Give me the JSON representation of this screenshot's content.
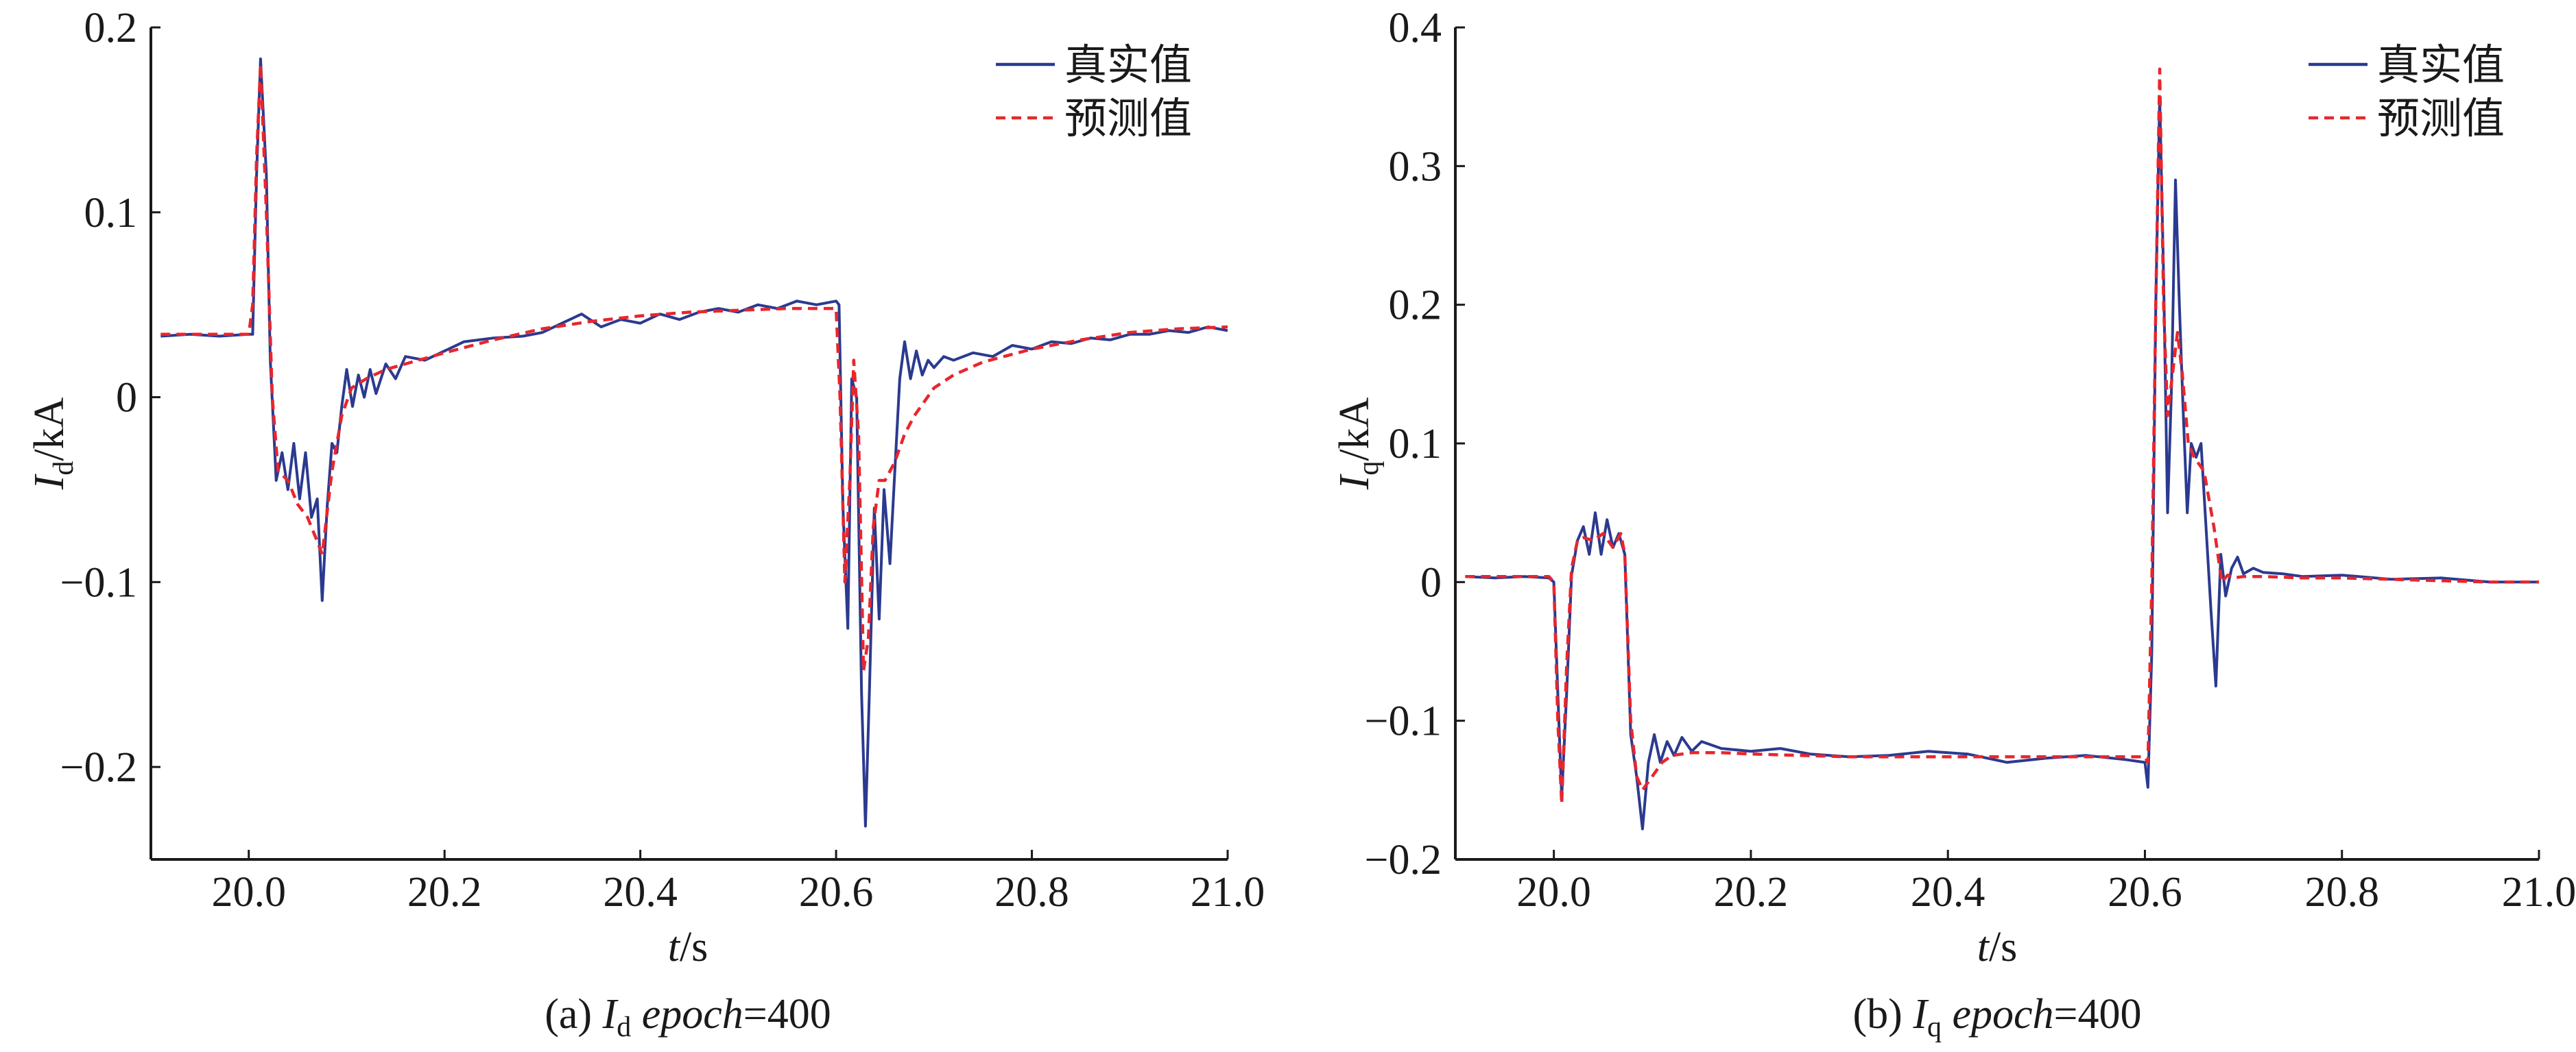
{
  "colors": {
    "actual": "#2b3a8f",
    "predicted": "#e8262d",
    "axis": "#1a1a1a"
  },
  "chart_data": [
    {
      "type": "line",
      "ylabel_main": "I",
      "ylabel_sub": "d",
      "ylabel_unit": "/kA",
      "xlabel_main": "t",
      "xlabel_unit": "/s",
      "caption_prefix": "(a) ",
      "caption_var": "I",
      "caption_sub": "d",
      "caption_epoch": "epoch",
      "caption_value": "=400",
      "xlim": [
        19.9,
        21.0
      ],
      "ylim": [
        -0.25,
        0.2
      ],
      "xticks": [
        20.0,
        20.2,
        20.4,
        20.6,
        20.8,
        21.0
      ],
      "xtick_labels": [
        "20.0",
        "20.2",
        "20.4",
        "20.6",
        "20.8",
        "21.0"
      ],
      "yticks": [
        -0.2,
        -0.1,
        0,
        0.1,
        0.2
      ],
      "ytick_labels": [
        "−0.2",
        "−0.1",
        "0",
        "0.1",
        "0.2"
      ],
      "legend_position": "top-right",
      "grid": false,
      "series": [
        {
          "name": "真实值",
          "style": "solid",
          "x": [
            19.91,
            19.94,
            19.97,
            20.0,
            20.004,
            20.008,
            20.012,
            20.018,
            20.022,
            20.028,
            20.034,
            20.04,
            20.046,
            20.052,
            20.058,
            20.064,
            20.07,
            20.075,
            20.08,
            20.085,
            20.09,
            20.095,
            20.1,
            20.106,
            20.112,
            20.118,
            20.124,
            20.13,
            20.14,
            20.15,
            20.16,
            20.18,
            20.2,
            20.22,
            20.25,
            20.28,
            20.3,
            20.32,
            20.34,
            20.36,
            20.38,
            20.4,
            20.42,
            20.44,
            20.46,
            20.48,
            20.5,
            20.52,
            20.54,
            20.56,
            20.58,
            20.6,
            20.603,
            20.607,
            20.612,
            20.616,
            20.621,
            20.626,
            20.63,
            20.634,
            20.639,
            20.644,
            20.649,
            20.655,
            20.66,
            20.665,
            20.67,
            20.676,
            20.682,
            20.688,
            20.694,
            20.7,
            20.71,
            20.72,
            20.74,
            20.76,
            20.78,
            20.8,
            20.82,
            20.84,
            20.86,
            20.88,
            20.9,
            20.92,
            20.94,
            20.96,
            20.98,
            21.0
          ],
          "y": [
            0.033,
            0.034,
            0.033,
            0.034,
            0.034,
            0.12,
            0.183,
            0.12,
            0.02,
            -0.045,
            -0.03,
            -0.05,
            -0.025,
            -0.055,
            -0.03,
            -0.065,
            -0.055,
            -0.11,
            -0.06,
            -0.025,
            -0.03,
            -0.005,
            0.015,
            -0.005,
            0.012,
            0.0,
            0.015,
            0.002,
            0.018,
            0.01,
            0.022,
            0.02,
            0.025,
            0.03,
            0.032,
            0.033,
            0.035,
            0.04,
            0.045,
            0.038,
            0.042,
            0.04,
            0.045,
            0.042,
            0.046,
            0.048,
            0.046,
            0.05,
            0.048,
            0.052,
            0.05,
            0.052,
            0.05,
            -0.06,
            -0.125,
            0.01,
            0.0,
            -0.16,
            -0.232,
            -0.16,
            -0.06,
            -0.12,
            -0.05,
            -0.09,
            -0.04,
            0.01,
            0.03,
            0.01,
            0.025,
            0.012,
            0.02,
            0.016,
            0.022,
            0.02,
            0.024,
            0.022,
            0.028,
            0.026,
            0.03,
            0.029,
            0.032,
            0.031,
            0.034,
            0.034,
            0.036,
            0.035,
            0.038,
            0.036
          ]
        },
        {
          "name": "预测值",
          "style": "dashed",
          "x": [
            19.91,
            19.94,
            19.97,
            20.0,
            20.004,
            20.008,
            20.012,
            20.018,
            20.024,
            20.03,
            20.04,
            20.05,
            20.06,
            20.07,
            20.075,
            20.085,
            20.095,
            20.105,
            20.12,
            20.14,
            20.16,
            20.2,
            20.25,
            20.3,
            20.35,
            20.4,
            20.45,
            20.5,
            20.55,
            20.6,
            20.604,
            20.609,
            20.614,
            20.618,
            20.623,
            20.628,
            20.633,
            20.638,
            20.644,
            20.65,
            20.66,
            20.67,
            20.68,
            20.7,
            20.72,
            20.75,
            20.8,
            20.85,
            20.9,
            20.95,
            21.0
          ],
          "y": [
            0.034,
            0.034,
            0.034,
            0.034,
            0.05,
            0.13,
            0.18,
            0.1,
            0.0,
            -0.04,
            -0.045,
            -0.058,
            -0.065,
            -0.078,
            -0.085,
            -0.04,
            -0.01,
            0.005,
            0.01,
            0.015,
            0.018,
            0.024,
            0.031,
            0.037,
            0.041,
            0.044,
            0.046,
            0.047,
            0.048,
            0.048,
            0.0,
            -0.1,
            -0.045,
            0.02,
            -0.02,
            -0.148,
            -0.13,
            -0.07,
            -0.045,
            -0.045,
            -0.035,
            -0.02,
            -0.01,
            0.005,
            0.012,
            0.019,
            0.026,
            0.031,
            0.035,
            0.037,
            0.038
          ]
        }
      ]
    },
    {
      "type": "line",
      "ylabel_main": "I",
      "ylabel_sub": "q",
      "ylabel_unit": "/kA",
      "xlabel_main": "t",
      "xlabel_unit": "/s",
      "caption_prefix": "(b) ",
      "caption_var": "I",
      "caption_sub": "q",
      "caption_epoch": "epoch",
      "caption_value": "=400",
      "xlim": [
        19.9,
        21.0
      ],
      "ylim": [
        -0.2,
        0.4
      ],
      "xticks": [
        20.0,
        20.2,
        20.4,
        20.6,
        20.8,
        21.0
      ],
      "xtick_labels": [
        "20.0",
        "20.2",
        "20.4",
        "20.6",
        "20.8",
        "21.0"
      ],
      "yticks": [
        -0.2,
        -0.1,
        0,
        0.1,
        0.2,
        0.3,
        0.4
      ],
      "ytick_labels": [
        "−0.2",
        "−0.1",
        "0",
        "0.1",
        "0.2",
        "0.3",
        "0.4"
      ],
      "legend_position": "top-right",
      "grid": false,
      "series": [
        {
          "name": "真实值",
          "style": "solid",
          "x": [
            19.91,
            19.94,
            19.97,
            19.995,
            20.0,
            20.004,
            20.008,
            20.013,
            20.018,
            20.024,
            20.03,
            20.036,
            20.042,
            20.048,
            20.054,
            20.06,
            20.066,
            20.072,
            20.078,
            20.084,
            20.09,
            20.096,
            20.102,
            20.108,
            20.115,
            20.122,
            20.13,
            20.14,
            20.15,
            20.17,
            20.2,
            20.23,
            20.26,
            20.3,
            20.34,
            20.38,
            20.42,
            20.46,
            20.5,
            20.54,
            20.58,
            20.6,
            20.603,
            20.607,
            20.611,
            20.615,
            20.619,
            20.623,
            20.627,
            20.631,
            20.635,
            20.639,
            20.643,
            20.647,
            20.652,
            20.657,
            20.662,
            20.667,
            20.672,
            20.677,
            20.682,
            20.688,
            20.694,
            20.7,
            20.71,
            20.72,
            20.74,
            20.76,
            20.8,
            20.85,
            20.9,
            20.95,
            21.0
          ],
          "y": [
            0.004,
            0.003,
            0.004,
            0.003,
            0.0,
            -0.08,
            -0.155,
            -0.08,
            0.005,
            0.03,
            0.04,
            0.02,
            0.05,
            0.02,
            0.045,
            0.025,
            0.035,
            0.02,
            -0.11,
            -0.14,
            -0.178,
            -0.13,
            -0.11,
            -0.13,
            -0.115,
            -0.125,
            -0.112,
            -0.122,
            -0.115,
            -0.12,
            -0.122,
            -0.12,
            -0.124,
            -0.126,
            -0.125,
            -0.122,
            -0.124,
            -0.13,
            -0.127,
            -0.125,
            -0.128,
            -0.13,
            -0.148,
            -0.05,
            0.2,
            0.35,
            0.22,
            0.05,
            0.14,
            0.29,
            0.2,
            0.12,
            0.05,
            0.1,
            0.09,
            0.1,
            0.04,
            -0.02,
            -0.075,
            0.02,
            -0.01,
            0.01,
            0.018,
            0.006,
            0.01,
            0.007,
            0.006,
            0.004,
            0.005,
            0.002,
            0.003,
            0.0,
            0.0
          ]
        },
        {
          "name": "预测值",
          "style": "dashed",
          "x": [
            19.91,
            19.94,
            19.97,
            19.995,
            20.0,
            20.004,
            20.008,
            20.013,
            20.018,
            20.024,
            20.03,
            20.04,
            20.05,
            20.06,
            20.068,
            20.072,
            20.078,
            20.084,
            20.09,
            20.1,
            20.11,
            20.12,
            20.14,
            20.17,
            20.2,
            20.3,
            20.4,
            20.5,
            20.6,
            20.603,
            20.607,
            20.611,
            20.615,
            20.619,
            20.623,
            20.628,
            20.633,
            20.638,
            20.644,
            20.65,
            20.66,
            20.67,
            20.678,
            20.684,
            20.69,
            20.7,
            20.72,
            20.76,
            20.8,
            20.85,
            20.9,
            20.95,
            21.0
          ],
          "y": [
            0.004,
            0.004,
            0.004,
            0.004,
            0.0,
            -0.1,
            -0.16,
            -0.06,
            0.01,
            0.03,
            0.032,
            0.03,
            0.035,
            0.025,
            0.035,
            0.02,
            -0.1,
            -0.14,
            -0.15,
            -0.14,
            -0.13,
            -0.125,
            -0.123,
            -0.123,
            -0.124,
            -0.126,
            -0.126,
            -0.126,
            -0.126,
            -0.13,
            0.0,
            0.2,
            0.37,
            0.2,
            0.12,
            0.15,
            0.18,
            0.15,
            0.1,
            0.09,
            0.08,
            0.04,
            0.0,
            0.005,
            0.003,
            0.004,
            0.004,
            0.003,
            0.003,
            0.002,
            0.001,
            0.0,
            0.0
          ]
        }
      ]
    }
  ]
}
